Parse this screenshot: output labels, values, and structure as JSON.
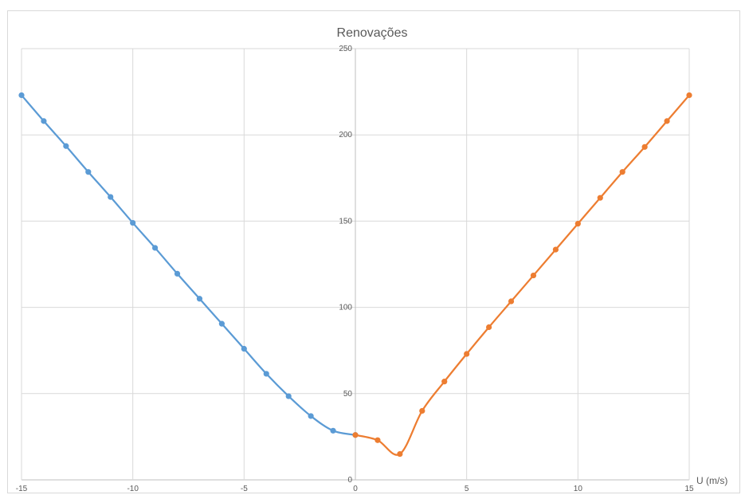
{
  "chart_data": {
    "type": "line",
    "title": "Renovações",
    "xlabel": "U (m/s)",
    "ylabel": "",
    "xlim": [
      -15,
      15
    ],
    "ylim": [
      0,
      250
    ],
    "x_ticks": [
      -15,
      -10,
      -5,
      0,
      5,
      10,
      15
    ],
    "y_ticks": [
      0,
      50,
      100,
      150,
      200,
      250
    ],
    "grid": true,
    "legend": "none",
    "series": [
      {
        "color": "#5b9bd5",
        "x": [
          -15,
          -14,
          -13,
          -12,
          -11,
          -10,
          -9,
          -8,
          -7,
          -6,
          -5,
          -4,
          -3,
          -2,
          -1,
          0
        ],
        "y": [
          223,
          208,
          193.5,
          178.5,
          164,
          149,
          134.5,
          119.5,
          105,
          90.5,
          76,
          61.5,
          48.5,
          37,
          28.5,
          26
        ]
      },
      {
        "color": "#ed7d31",
        "x": [
          0,
          1,
          2,
          3,
          4,
          5,
          6,
          7,
          8,
          9,
          10,
          11,
          12,
          13,
          14,
          15
        ],
        "y": [
          26,
          23,
          15,
          40,
          57,
          73,
          88.5,
          103.5,
          118.5,
          133.5,
          148.5,
          163.5,
          178.5,
          193,
          208,
          223
        ]
      }
    ]
  }
}
